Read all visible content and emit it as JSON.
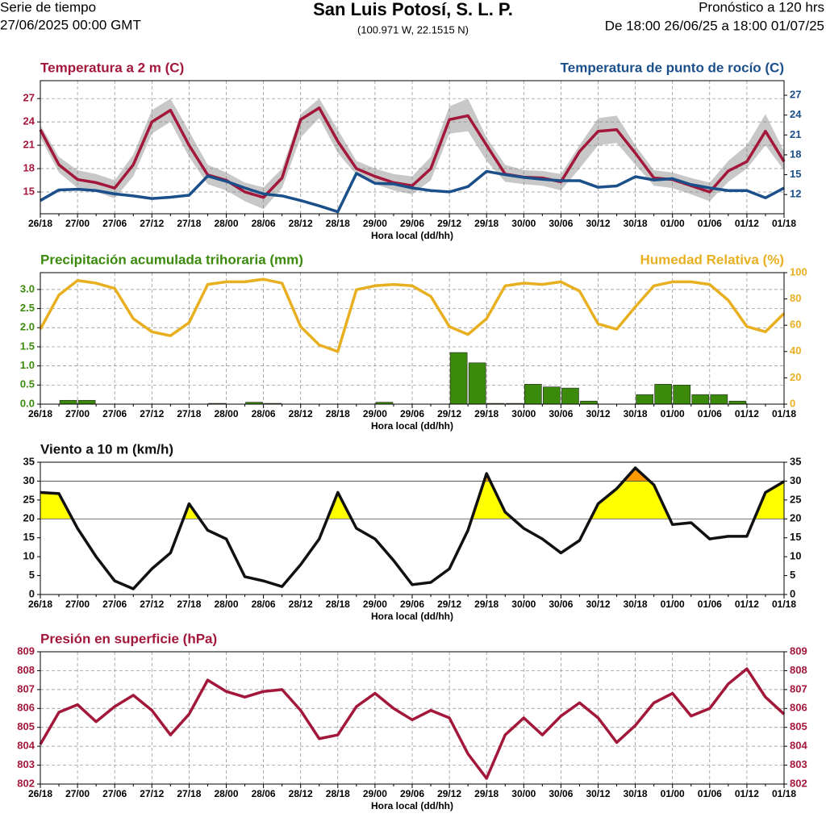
{
  "header": {
    "left": [
      "Serie de tiempo",
      "27/06/2025 00:00 GMT"
    ],
    "title": "San Luis Potosí,  S. L. P.",
    "subtitle": "(100.971 W, 22.1515 N)",
    "right": [
      "Pronóstico a 120 hrs",
      "De 18:00 26/06/25 a 18:00 01/07/25"
    ]
  },
  "chart_data": [
    {
      "type": "line",
      "x_label": "Hora local (dd/hh)",
      "categories": [
        "26/18",
        null,
        "27/00",
        null,
        "27/06",
        null,
        "27/12",
        null,
        "27/18",
        null,
        "28/00",
        null,
        "28/06",
        null,
        "28/12",
        null,
        "28/18",
        null,
        "29/00",
        null,
        "29/06",
        null,
        "29/12",
        null,
        "29/18",
        null,
        "30/00",
        null,
        "30/06",
        null,
        "30/12",
        null,
        "30/18",
        null,
        "01/00",
        null,
        "01/06",
        null,
        "01/12",
        null,
        "01/18"
      ],
      "ylim": [
        12.2,
        29.3
      ],
      "yticks": [
        15,
        18,
        21,
        24,
        27
      ],
      "y2lim": [
        9.1,
        29.2
      ],
      "y2ticks": [
        12,
        15,
        18,
        21,
        24,
        27
      ],
      "grid": true,
      "band": {
        "color": "#c8c8c8",
        "low": [
          22.0,
          17.5,
          15.5,
          15.0,
          14.2,
          17.0,
          22.5,
          24.0,
          19.5,
          16.0,
          15.2,
          13.8,
          12.8,
          15.5,
          22.0,
          24.5,
          20.0,
          17.2,
          16.0,
          15.2,
          14.7,
          16.5,
          22.5,
          22.8,
          19.0,
          16.3,
          16.0,
          15.8,
          15.2,
          18.0,
          21.0,
          21.3,
          18.5,
          15.8,
          15.5,
          14.7,
          13.8,
          16.3,
          18.0,
          21.0,
          17.8
        ],
        "high": [
          23.6,
          19.5,
          17.8,
          17.3,
          16.5,
          19.8,
          25.5,
          27.0,
          22.8,
          18.5,
          17.5,
          16.2,
          15.6,
          18.0,
          25.0,
          27.0,
          23.0,
          19.0,
          18.0,
          17.3,
          17.0,
          19.5,
          26.0,
          27.0,
          22.0,
          18.5,
          17.8,
          17.7,
          17.3,
          21.0,
          24.5,
          24.8,
          21.0,
          17.8,
          17.5,
          16.8,
          16.2,
          19.0,
          21.0,
          25.0,
          20.2
        ]
      },
      "series": [
        {
          "name": "Temperatura a 2 m (C)",
          "color": "#a3173a",
          "values": [
            23,
            18.5,
            16.6,
            16.2,
            15.5,
            18.5,
            24.0,
            25.5,
            21,
            17.2,
            16.5,
            15.0,
            14.3,
            16.8,
            24.3,
            25.8,
            21.5,
            18,
            17,
            16.2,
            15.8,
            18,
            24.3,
            24.8,
            21,
            17.3,
            16.9,
            16.8,
            16.3,
            20.2,
            22.8,
            23.0,
            20,
            16.8,
            16.6,
            15.8,
            15.0,
            17.7,
            18.9,
            22.8,
            18.9
          ]
        },
        {
          "name": "Temperatura de punto de rocío (C)",
          "color": "#1b4f8a",
          "axis": "y2",
          "values": [
            11.1,
            12.7,
            12.8,
            12.6,
            12.1,
            11.8,
            11.4,
            11.6,
            11.9,
            14.8,
            14.0,
            13.0,
            12.1,
            11.8,
            11.1,
            10.3,
            9.4,
            15.2,
            13.7,
            13.6,
            13.0,
            12.6,
            12.4,
            13.2,
            15.5,
            15.0,
            14.6,
            14.3,
            14.1,
            14.1,
            13.1,
            13.3,
            14.7,
            14.2,
            14.4,
            13.5,
            13.0,
            12.6,
            12.6,
            11.5,
            13.0
          ]
        }
      ]
    },
    {
      "type": "bar",
      "x_label": "Hora local (dd/hh)",
      "categories": [
        "26/18",
        null,
        "27/00",
        null,
        "27/06",
        null,
        "27/12",
        null,
        "27/18",
        null,
        "28/00",
        null,
        "28/06",
        null,
        "28/12",
        null,
        "28/18",
        null,
        "29/00",
        null,
        "29/06",
        null,
        "29/12",
        null,
        "29/18",
        null,
        "30/00",
        null,
        "30/06",
        null,
        "30/12",
        null,
        "30/18",
        null,
        "01/00",
        null,
        "01/06",
        null,
        "01/12",
        null,
        "01/18"
      ],
      "ylim": [
        0,
        3.44
      ],
      "yticks": [
        {
          "value": 0,
          "label": "0.0"
        },
        0.5,
        {
          "value": 1,
          "label": "1.0"
        },
        1.5,
        {
          "value": 2,
          "label": "2.0"
        },
        2.5,
        {
          "value": 3,
          "label": "3.0"
        }
      ],
      "y2lim": [
        0,
        100
      ],
      "y2ticks": [
        0,
        20,
        40,
        60,
        80,
        100
      ],
      "grid": true,
      "series": [
        {
          "name": "Precipitación acumulada trihoraria (mm)",
          "color": "#3b8a0c",
          "values": [
            0,
            0,
            0.1,
            0.1,
            0,
            0,
            0,
            0,
            0,
            0,
            0.02,
            0,
            0.05,
            0.02,
            0,
            0,
            0,
            0,
            0,
            0.05,
            0,
            0,
            0,
            1.35,
            1.08,
            0.02,
            0.02,
            0.52,
            0.45,
            0.42,
            0.08,
            0,
            0,
            0.25,
            0.52,
            0.5,
            0.25,
            0.25,
            0.08,
            0,
            0
          ]
        },
        {
          "name": "Humedad Relativa (%)",
          "color": "#e8b020",
          "axis": "y2",
          "type": "line",
          "values": [
            57,
            83,
            94,
            92,
            88,
            65,
            55,
            52,
            62,
            91,
            93,
            93,
            95,
            92,
            59,
            45,
            40,
            87,
            90,
            91,
            90,
            82,
            59,
            53,
            65,
            90,
            92,
            91,
            93,
            86,
            61,
            57,
            74,
            90,
            93,
            93,
            91,
            79,
            59,
            55,
            69
          ]
        }
      ]
    },
    {
      "type": "line",
      "x_label": "Hora local (dd/hh)",
      "categories": [
        "26/18",
        null,
        "27/00",
        null,
        "27/06",
        null,
        "27/12",
        null,
        "27/18",
        null,
        "28/00",
        null,
        "28/06",
        null,
        "28/12",
        null,
        "28/18",
        null,
        "29/00",
        null,
        "29/06",
        null,
        "29/12",
        null,
        "29/18",
        null,
        "30/00",
        null,
        "30/06",
        null,
        "30/12",
        null,
        "30/18",
        null,
        "01/00",
        null,
        "01/06",
        null,
        "01/12",
        null,
        "01/18"
      ],
      "ylim": [
        0,
        35
      ],
      "yticks": [
        0,
        5,
        10,
        15,
        20,
        25,
        30,
        35
      ],
      "mirror_yticks": true,
      "grid": false,
      "thresholds": [
        {
          "value": 20,
          "color": "#ffff00"
        },
        {
          "value": 30,
          "color": "#ff9900"
        }
      ],
      "series": [
        {
          "name": "Viento a 10 m (km/h)",
          "color": "#111111",
          "values": [
            27,
            26.7,
            17.5,
            10,
            3.6,
            1.5,
            6.8,
            11,
            24,
            17,
            14.7,
            4.7,
            3.6,
            2.1,
            7.9,
            14.7,
            27,
            17.5,
            14.7,
            9,
            2.6,
            3.2,
            6.8,
            17,
            32,
            21.8,
            17.5,
            14.7,
            11,
            14.3,
            24,
            28,
            33.5,
            29,
            18.5,
            19,
            14.7,
            15.4,
            15.4,
            27,
            29.9
          ]
        }
      ]
    },
    {
      "type": "line",
      "x_label": "Hora local (dd/hh)",
      "categories": [
        "26/18",
        null,
        "27/00",
        null,
        "27/06",
        null,
        "27/12",
        null,
        "27/18",
        null,
        "28/00",
        null,
        "28/06",
        null,
        "28/12",
        null,
        "28/18",
        null,
        "29/00",
        null,
        "29/06",
        null,
        "29/12",
        null,
        "29/18",
        null,
        "30/00",
        null,
        "30/06",
        null,
        "30/12",
        null,
        "30/18",
        null,
        "01/00",
        null,
        "01/06",
        null,
        "01/12",
        null,
        "01/18"
      ],
      "ylim": [
        802,
        809
      ],
      "yticks": [
        802,
        803,
        804,
        805,
        806,
        807,
        808,
        809
      ],
      "mirror_yticks": true,
      "grid": true,
      "series": [
        {
          "name": "Presión en superficie (hPa)",
          "color": "#a3173a",
          "values": [
            804.1,
            805.8,
            806.2,
            805.3,
            806.1,
            806.7,
            805.9,
            804.6,
            805.7,
            807.5,
            806.9,
            806.6,
            806.9,
            807.0,
            805.9,
            804.4,
            804.6,
            806.1,
            806.8,
            806.0,
            805.4,
            805.9,
            805.5,
            803.6,
            802.3,
            804.6,
            805.5,
            804.6,
            805.6,
            806.3,
            805.5,
            804.2,
            805.1,
            806.3,
            806.8,
            805.6,
            806.0,
            807.3,
            808.1,
            806.6,
            805.7
          ]
        }
      ]
    }
  ]
}
